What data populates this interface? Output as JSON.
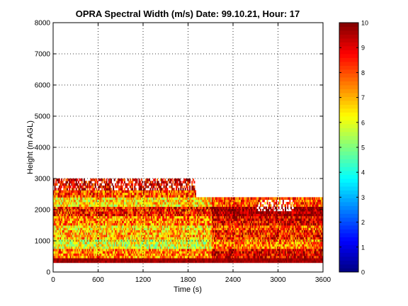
{
  "chart_data": {
    "type": "heatmap",
    "title": "OPRA Spectral Width (m/s)  Date: 99.10.21, Hour: 17",
    "xlabel": "Time (s)",
    "ylabel": "Height (m AGL)",
    "xlim": [
      0,
      3600
    ],
    "ylim": [
      0,
      8000
    ],
    "xticks": [
      "0",
      "600",
      "1200",
      "1800",
      "2400",
      "3000",
      "3600"
    ],
    "yticks": [
      "0",
      "1000",
      "2000",
      "3000",
      "4000",
      "5000",
      "6000",
      "7000",
      "8000"
    ],
    "grid": true,
    "colorbar": {
      "colormap": "jet",
      "clim": [
        0,
        10
      ],
      "ticks": [
        "0",
        "1",
        "2",
        "3",
        "4",
        "5",
        "6",
        "7",
        "8",
        "9",
        "10"
      ]
    },
    "data_extent": {
      "height_max": 3000,
      "height_min": 300
    },
    "bands": [
      {
        "height": [
          300,
          450
        ],
        "value": 9.5
      },
      {
        "height": [
          450,
          700
        ],
        "value": 7.5
      },
      {
        "height": [
          700,
          1000
        ],
        "value": 6.0
      },
      {
        "height": [
          1000,
          1300
        ],
        "value": 7.0
      },
      {
        "height": [
          1300,
          1500
        ],
        "value": 6.5
      },
      {
        "height": [
          1500,
          1800
        ],
        "value": 7.5
      },
      {
        "height": [
          1800,
          2100
        ],
        "value": 8.5
      },
      {
        "height": [
          2100,
          2400
        ],
        "value": 6.5
      },
      {
        "height": [
          2400,
          2600
        ],
        "value": 8.0
      },
      {
        "height": [
          2600,
          3000
        ],
        "value": 9.0
      }
    ]
  }
}
